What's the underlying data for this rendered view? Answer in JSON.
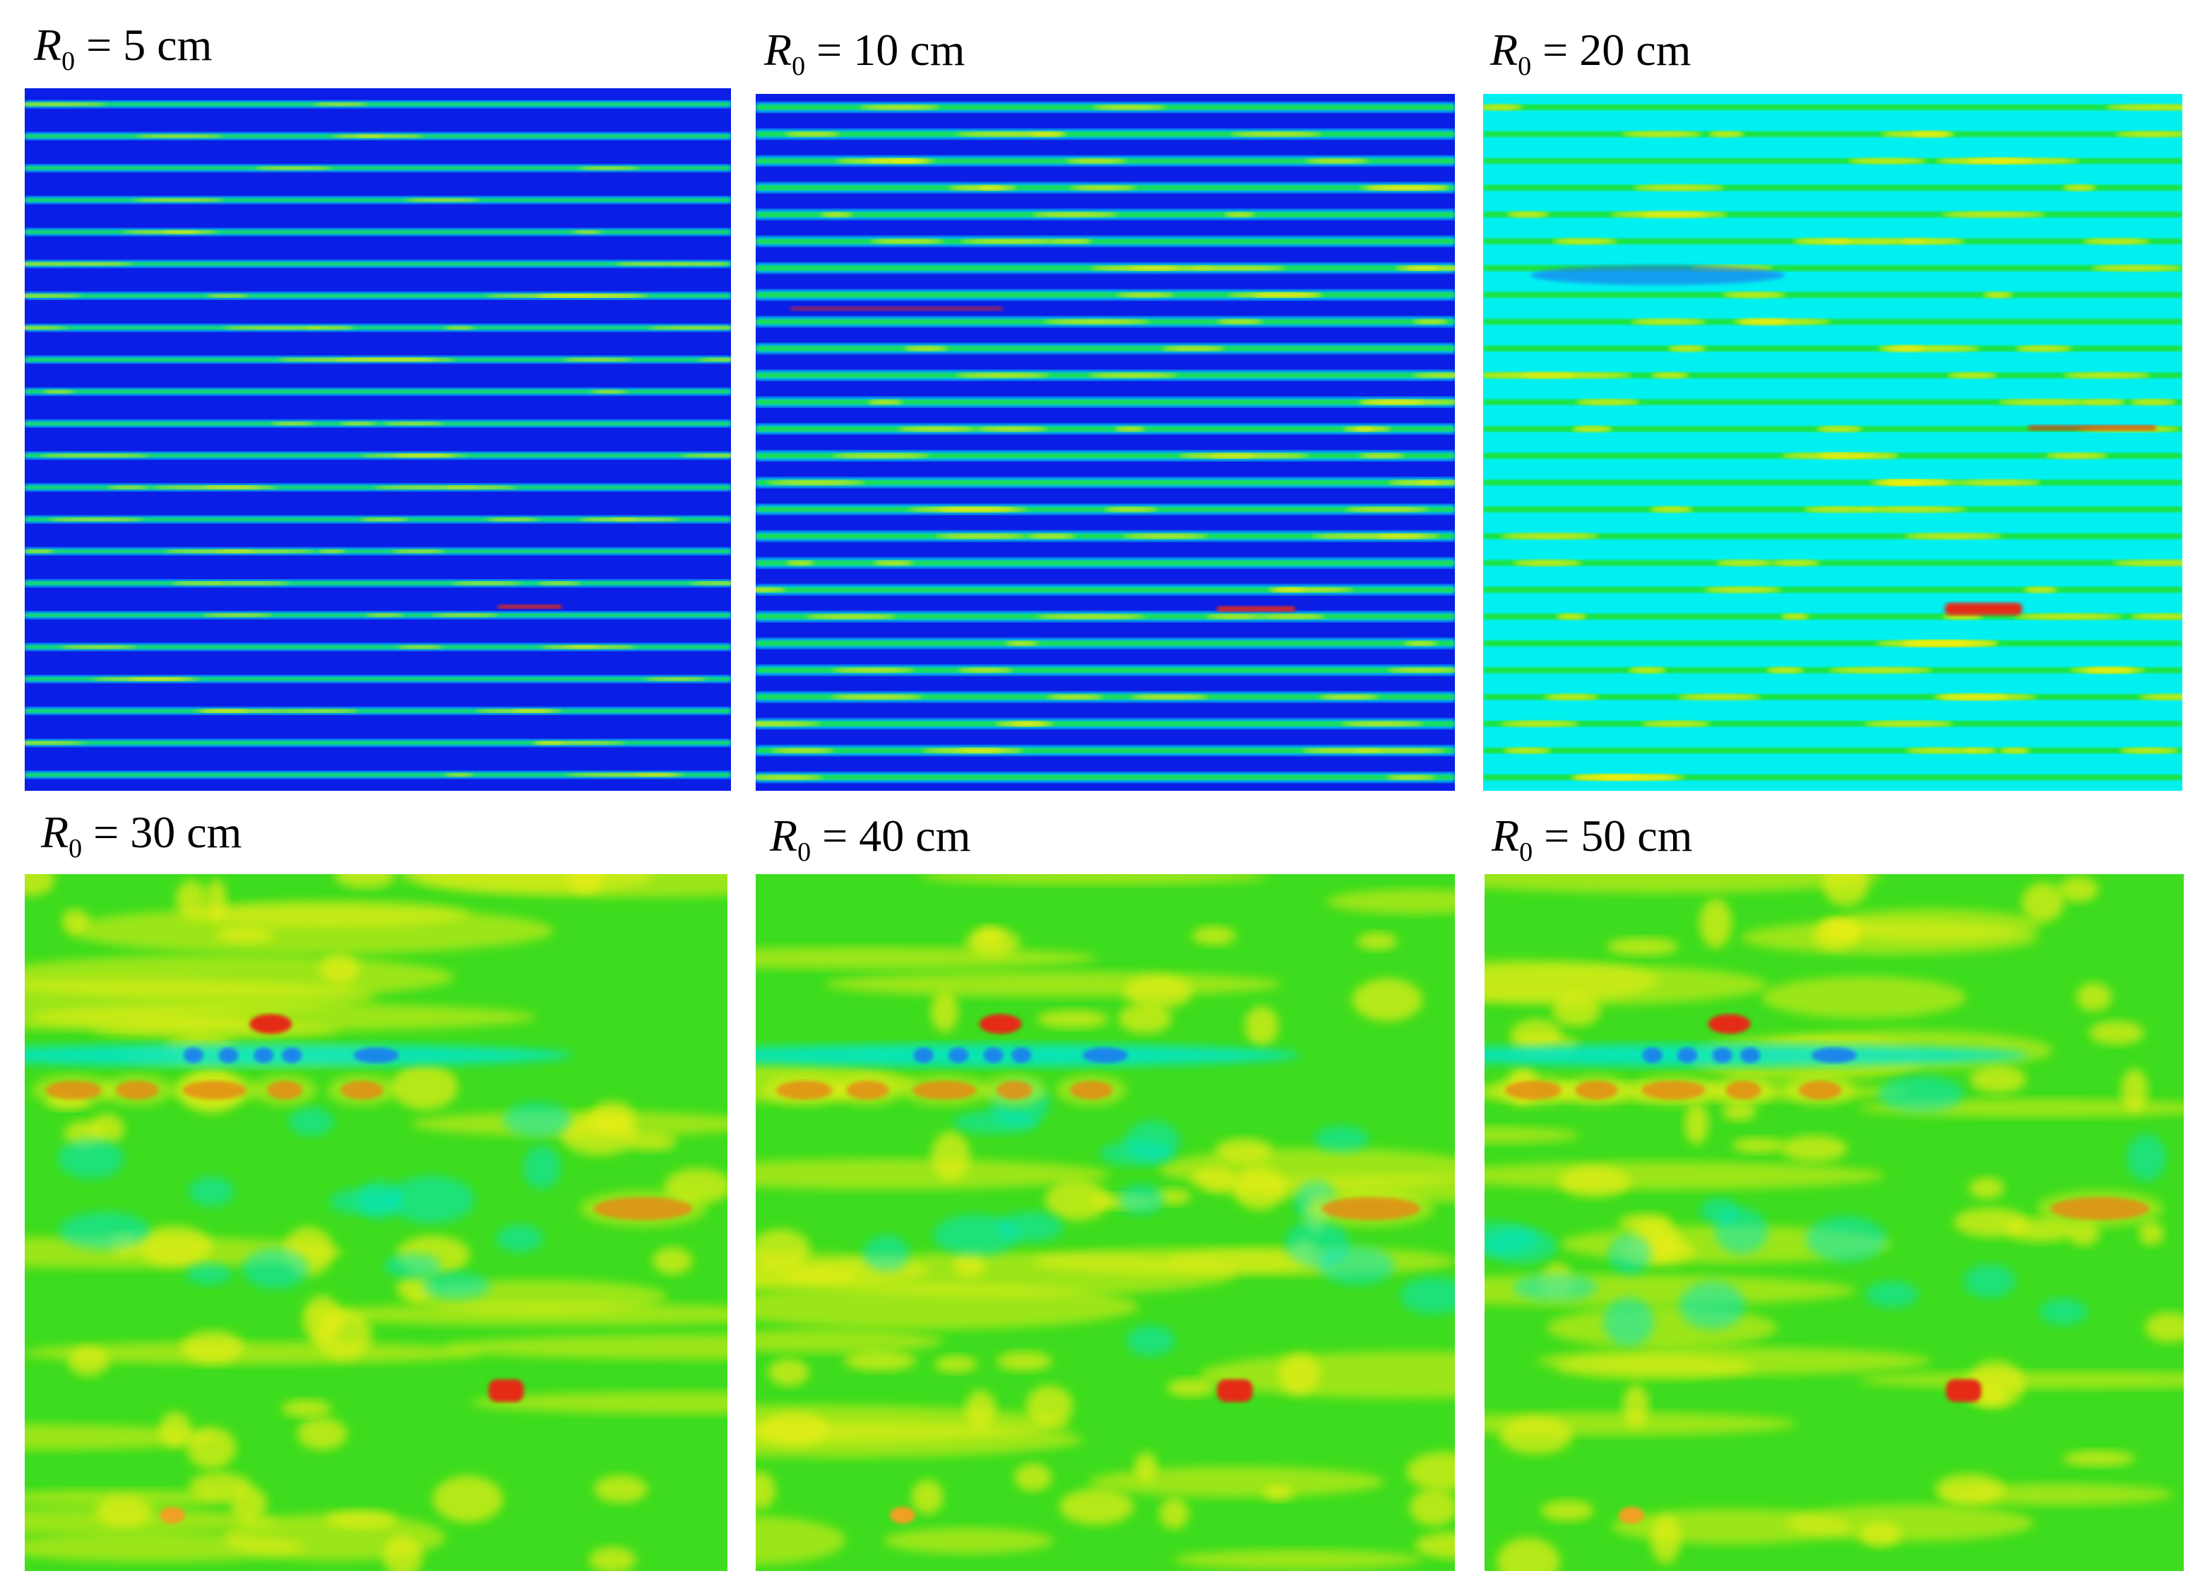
{
  "panels": [
    {
      "label": {
        "symbol": "R",
        "subscript": "0",
        "equals": " = ",
        "value": "5",
        "unit": "cm"
      },
      "colors": [
        "#0a1ee6",
        "#00eaea",
        "#22e022",
        "#f2ef10",
        "#e52c12"
      ],
      "regime": "sparse-stripes"
    },
    {
      "label": {
        "symbol": "R",
        "subscript": "0",
        "equals": " = ",
        "value": "10",
        "unit": "cm"
      },
      "colors": [
        "#0a1ee6",
        "#00eaea",
        "#22e022",
        "#f2ef10",
        "#e52c12"
      ],
      "regime": "dense-stripes"
    },
    {
      "label": {
        "symbol": "R",
        "subscript": "0",
        "equals": " = ",
        "value": "20",
        "unit": "cm"
      },
      "colors": [
        "#1e7bf0",
        "#00f0f0",
        "#22e022",
        "#f2ef10",
        "#e52c12"
      ],
      "regime": "cyan-green-stripes"
    },
    {
      "label": {
        "symbol": "R",
        "subscript": "0",
        "equals": " = ",
        "value": "30",
        "unit": "cm"
      },
      "colors": [
        "#1e7bf0",
        "#00e6d0",
        "#3ddc1e",
        "#e8ee18",
        "#e52c12"
      ],
      "regime": "smooth"
    },
    {
      "label": {
        "symbol": "R",
        "subscript": "0",
        "equals": " = ",
        "value": "40",
        "unit": "cm"
      },
      "colors": [
        "#1e7bf0",
        "#00e6d0",
        "#3ddc1e",
        "#e8ee18",
        "#e52c12"
      ],
      "regime": "smooth"
    },
    {
      "label": {
        "symbol": "R",
        "subscript": "0",
        "equals": " = ",
        "value": "50",
        "unit": "cm"
      },
      "colors": [
        "#1e7bf0",
        "#00e6d0",
        "#3ddc1e",
        "#e8ee18",
        "#e52c12"
      ],
      "regime": "smooth"
    }
  ]
}
